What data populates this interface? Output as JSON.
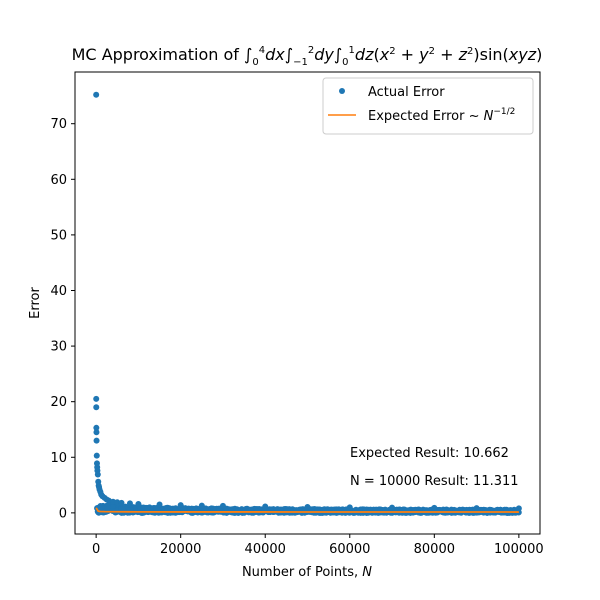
{
  "chart_data": {
    "type": "scatter",
    "title": "MC Approximation of ∫₀⁴dx∫₋₁²dy∫₀¹dz(x² + y² + z²)sin(xyz)",
    "xlabel": "Number of Points, N",
    "ylabel": "Error",
    "xlim": [
      -5000,
      105000
    ],
    "ylim": [
      -3.8,
      79.3
    ],
    "xticks": [
      0,
      20000,
      40000,
      60000,
      80000,
      100000
    ],
    "xtick_labels": [
      "0",
      "20000",
      "40000",
      "60000",
      "80000",
      "100000"
    ],
    "yticks": [
      0,
      10,
      20,
      30,
      40,
      50,
      60,
      70
    ],
    "ytick_labels": [
      "0",
      "10",
      "20",
      "30",
      "40",
      "50",
      "60",
      "70"
    ],
    "grid": false,
    "legend_position": "top-right",
    "series": [
      {
        "name": "Actual Error",
        "kind": "scatter",
        "color": "#1f77b4",
        "x": [
          10,
          20,
          30,
          50,
          80,
          100,
          150,
          200,
          250,
          300,
          400,
          500,
          600,
          700,
          800,
          1000,
          1200,
          1500,
          2000,
          2500,
          3000,
          4000,
          5000,
          6000,
          8000,
          10000,
          15000,
          20000,
          25000,
          30000,
          40000,
          50000,
          60000,
          70000,
          80000,
          90000,
          100000
        ],
        "y": [
          75.2,
          20.5,
          19.0,
          15.3,
          14.5,
          13.0,
          10.3,
          8.9,
          8.2,
          7.6,
          6.9,
          5.6,
          4.9,
          4.6,
          4.2,
          3.8,
          3.3,
          3.0,
          2.7,
          2.4,
          2.2,
          2.0,
          1.9,
          1.8,
          1.7,
          1.6,
          1.5,
          1.4,
          1.3,
          1.25,
          1.15,
          1.05,
          1.0,
          0.95,
          0.9,
          0.85,
          0.8
        ]
      },
      {
        "name": "Expected Error ~ N^(-1/2)",
        "kind": "line",
        "color": "#ff7f0e",
        "x": [
          1,
          500,
          1000,
          2000,
          5000,
          10000,
          20000,
          50000,
          100000
        ],
        "y": [
          0.9,
          0.3,
          0.25,
          0.22,
          0.2,
          0.18,
          0.17,
          0.16,
          0.15
        ]
      }
    ],
    "annotations": [
      "Expected Result: 10.662",
      "N = 10000 Result: 11.311"
    ]
  }
}
